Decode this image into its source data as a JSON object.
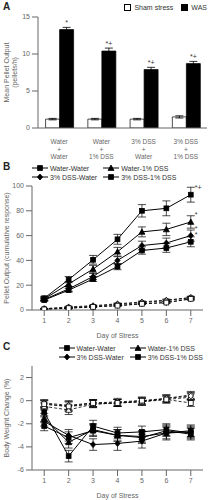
{
  "chart_data": [
    {
      "type": "bar",
      "title": "A",
      "categories": [
        "Water\n+\nWater",
        "Water\n+\n1% DSS",
        "3% DSS\n+\nWater",
        "3% DSS\n+\n1% DSS"
      ],
      "series": [
        {
          "name": "Sham stress",
          "color": "#ffffff",
          "values": [
            1.2,
            1.2,
            1.2,
            1.5
          ],
          "errors": [
            0.1,
            0.1,
            0.1,
            0.15
          ]
        },
        {
          "name": "WAS",
          "color": "#000000",
          "values": [
            13.3,
            10.4,
            7.9,
            8.7
          ],
          "errors": [
            0.3,
            0.4,
            0.3,
            0.3
          ],
          "annotations": [
            "*",
            "*+",
            "*+",
            "*+"
          ]
        }
      ],
      "ylabel": "Mean Pellet Output\n(pellets/h)",
      "ylim": [
        0,
        15
      ],
      "yticks": [
        0,
        5,
        10,
        15
      ],
      "legend": "upper right"
    },
    {
      "type": "line",
      "title": "B",
      "x": [
        1,
        2,
        3,
        4,
        5,
        6,
        7
      ],
      "xlim": [
        0.5,
        7.5
      ],
      "xticks": [
        1,
        2,
        3,
        4,
        5,
        6,
        7
      ],
      "xlabel": "Day of Stress",
      "ylabel": "Pellet Output (cumulative response)",
      "ylim": [
        0,
        100
      ],
      "yticks": [
        0,
        20,
        40,
        60,
        80,
        100
      ],
      "legend": "upper left",
      "series": [
        {
          "name": "Water-Water",
          "color": "#000000",
          "marker": "square",
          "line_style": "solid",
          "values": [
            9.5,
            24.5,
            40.5,
            57,
            80,
            82,
            93
          ],
          "errors": [
            1.5,
            2.5,
            3.5,
            4,
            5,
            6,
            6
          ]
        },
        {
          "name": "Water-1% DSS",
          "color": "#000000",
          "marker": "triangle",
          "line_style": "solid",
          "values": [
            9,
            21,
            33,
            47,
            63,
            65,
            71
          ],
          "errors": [
            1.2,
            2,
            3,
            3.5,
            4,
            5,
            5
          ]
        },
        {
          "name": "3% DSS-Water",
          "color": "#000000",
          "marker": "diamond",
          "line_style": "solid",
          "values": [
            8.5,
            17,
            27,
            40,
            52,
            54,
            60
          ],
          "errors": [
            1,
            1.8,
            2.5,
            3,
            3.5,
            4,
            4.5
          ]
        },
        {
          "name": "3% DSS-1% DSS",
          "color": "#000000",
          "marker": "square",
          "line_style": "solid",
          "values": [
            8,
            16,
            25,
            35,
            48,
            50,
            55
          ],
          "errors": [
            1,
            1.5,
            2,
            2.5,
            3,
            3.5,
            4
          ]
        },
        {
          "color": "#000000",
          "marker": "open_circle",
          "line_style": "dashed",
          "values": [
            1,
            2,
            3,
            4.5,
            6,
            7.5,
            10
          ],
          "errors": [
            0.3,
            0.5,
            0.5,
            0.6,
            0.7,
            0.8,
            1
          ]
        },
        {
          "color": "#000000",
          "marker": "open_triangle",
          "line_style": "dashed",
          "values": [
            1,
            2.5,
            3.5,
            5,
            6.5,
            8,
            10
          ],
          "errors": [
            0.3,
            0.5,
            0.5,
            0.6,
            0.7,
            0.8,
            1
          ]
        },
        {
          "color": "#000000",
          "marker": "open_diamond",
          "line_style": "dashed",
          "values": [
            0.5,
            1.5,
            2.5,
            3.5,
            5,
            6,
            9
          ],
          "errors": [
            0.2,
            0.4,
            0.4,
            0.5,
            0.6,
            0.7,
            0.9
          ]
        },
        {
          "color": "#000000",
          "marker": "open_square",
          "line_style": "dashed",
          "values": [
            0.5,
            1.5,
            2.5,
            3.5,
            5,
            6,
            9
          ],
          "errors": [
            0.2,
            0.4,
            0.4,
            0.5,
            0.6,
            0.7,
            0.9
          ]
        }
      ],
      "annotations": [
        {
          "series": "Water-Water",
          "text": "*+"
        },
        {
          "series": "Water-1% DSS",
          "text": "*"
        },
        {
          "series": "3% DSS-Water",
          "text": "*"
        },
        {
          "series": "3% DSS-1% DSS",
          "text": "*"
        }
      ]
    },
    {
      "type": "line",
      "title": "C",
      "x": [
        1,
        2,
        3,
        4,
        5,
        6,
        7
      ],
      "xlim": [
        0.5,
        7.5
      ],
      "xticks": [
        1,
        2,
        3,
        4,
        5,
        6,
        7
      ],
      "xlabel": "Day of Stress",
      "ylabel": "Body Weight Change (%)",
      "ylim": [
        -6,
        3
      ],
      "yticks": [
        -6,
        -4,
        -2,
        0,
        2
      ],
      "legend": "upper right",
      "series": [
        {
          "name": "Water-Water",
          "color": "#000000",
          "marker": "square",
          "line_style": "solid",
          "values": [
            -1.0,
            -4.8,
            -2.2,
            -2.8,
            -2.7,
            -2.5,
            -2.8
          ],
          "errors": [
            0.3,
            0.5,
            0.5,
            0.5,
            0.5,
            0.5,
            0.5
          ]
        },
        {
          "name": "Water-1% DSS",
          "color": "#000000",
          "marker": "triangle",
          "line_style": "solid",
          "values": [
            -1.5,
            -3.6,
            -2.5,
            -3.0,
            -3.2,
            -2.6,
            -2.9
          ],
          "errors": [
            0.4,
            0.5,
            0.5,
            0.5,
            0.5,
            0.5,
            0.5
          ]
        },
        {
          "name": "3% DSS-Water",
          "color": "#000000",
          "marker": "diamond",
          "line_style": "solid",
          "values": [
            -1.8,
            -3.0,
            -3.8,
            -3.7,
            -3.5,
            -2.8,
            -2.7
          ],
          "errors": [
            0.4,
            0.5,
            0.5,
            0.6,
            0.6,
            0.6,
            0.5
          ]
        },
        {
          "name": "3% DSS-1% DSS",
          "color": "#000000",
          "marker": "square",
          "line_style": "solid",
          "values": [
            -2.2,
            -3.2,
            -2.6,
            -3.0,
            -3.1,
            -2.8,
            -2.6
          ],
          "errors": [
            0.4,
            0.5,
            0.5,
            0.5,
            0.5,
            0.5,
            0.5
          ]
        },
        {
          "color": "#000000",
          "marker": "open_circle",
          "line_style": "dashed",
          "values": [
            -0.3,
            -0.5,
            -0.3,
            -0.2,
            -0.1,
            0.2,
            0.5
          ],
          "errors": [
            0.3,
            0.4,
            0.3,
            0.3,
            0.3,
            0.3,
            0.3
          ]
        },
        {
          "color": "#000000",
          "marker": "open_triangle",
          "line_style": "dashed",
          "values": [
            -0.5,
            -0.8,
            -0.3,
            -0.2,
            -0.1,
            0.1,
            0.3
          ],
          "errors": [
            0.3,
            0.4,
            0.3,
            0.3,
            0.3,
            0.3,
            0.3
          ]
        },
        {
          "color": "#000000",
          "marker": "open_diamond",
          "line_style": "dashed",
          "values": [
            -0.2,
            -0.4,
            -0.2,
            -0.1,
            0.0,
            0.2,
            0.4
          ],
          "errors": [
            0.3,
            0.4,
            0.3,
            0.3,
            0.3,
            0.3,
            0.3
          ]
        },
        {
          "color": "#000000",
          "marker": "open_square",
          "line_style": "dashed",
          "values": [
            -0.3,
            -0.5,
            -0.2,
            -0.2,
            0.0,
            0.1,
            -0.2
          ],
          "errors": [
            0.3,
            0.4,
            0.3,
            0.3,
            0.3,
            0.3,
            0.3
          ]
        }
      ]
    }
  ]
}
